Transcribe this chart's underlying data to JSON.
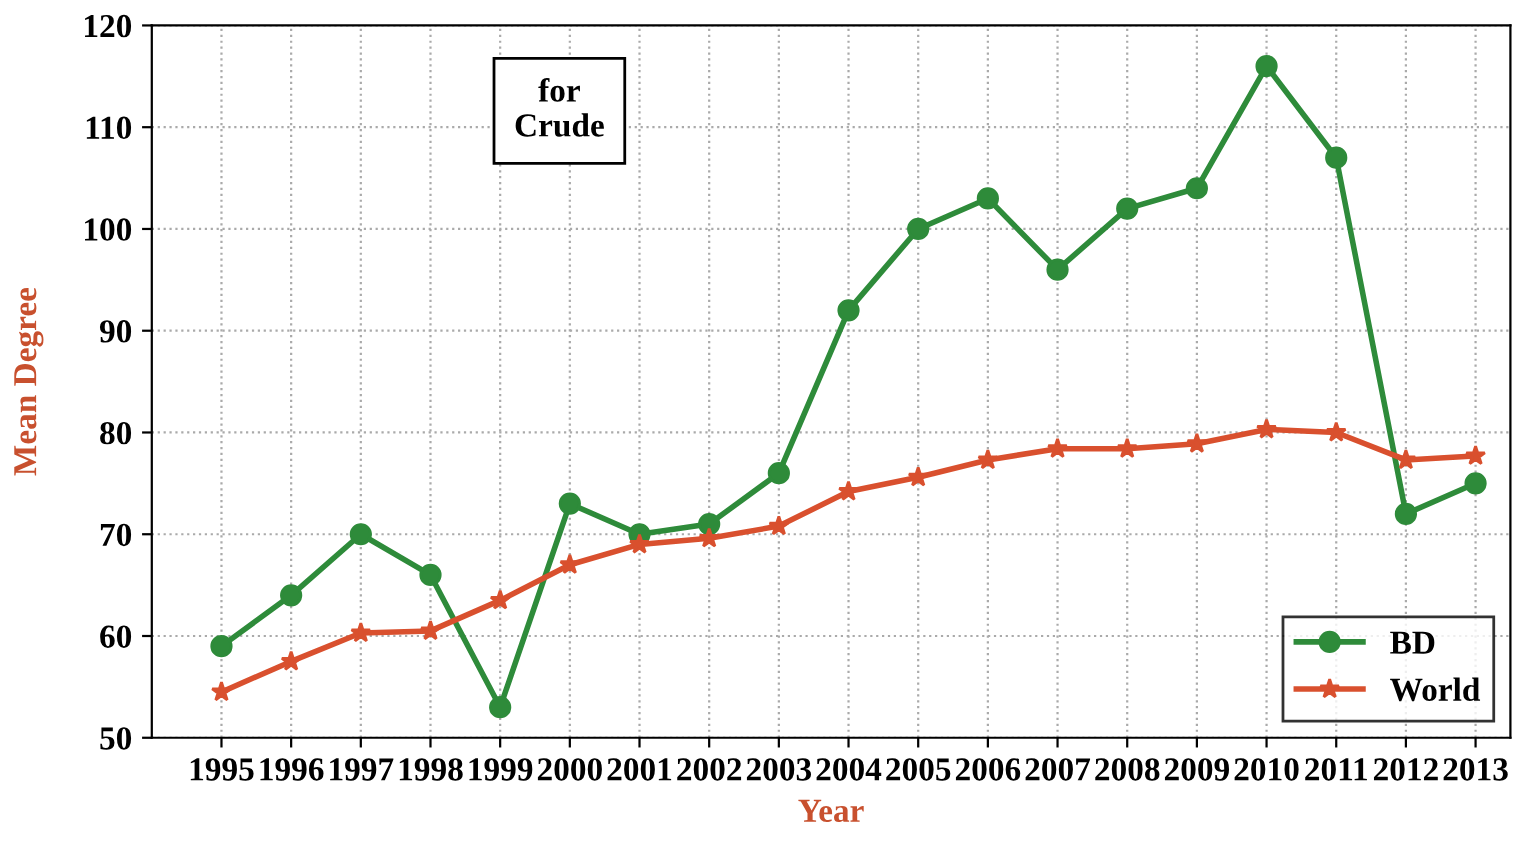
{
  "chart_data": {
    "type": "line",
    "xlabel": "Year",
    "ylabel": "Mean Degree",
    "annotations": [
      "for\nCrude"
    ],
    "x": [
      1995,
      1996,
      1997,
      1998,
      1999,
      2000,
      2001,
      2002,
      2003,
      2004,
      2005,
      2006,
      2007,
      2008,
      2009,
      2010,
      2011,
      2012,
      2013
    ],
    "series": [
      {
        "name": "BD",
        "color": "#2e8b3a",
        "marker": "circle",
        "values": [
          59,
          64,
          70,
          66,
          53,
          73,
          70,
          71,
          76,
          92,
          100,
          103,
          96,
          102,
          104,
          116,
          107,
          72,
          75
        ]
      },
      {
        "name": "World",
        "color": "#d9502e",
        "marker": "star",
        "values": [
          54.5,
          57.5,
          60.3,
          60.5,
          63.5,
          67,
          69,
          69.6,
          70.8,
          74.2,
          75.6,
          77.3,
          78.4,
          78.4,
          78.9,
          80.3,
          80,
          77.3,
          77.7
        ]
      }
    ],
    "xlim": [
      1994,
      2013.5
    ],
    "xticks": [
      1995,
      1996,
      1997,
      1998,
      1999,
      2000,
      2001,
      2002,
      2003,
      2004,
      2005,
      2006,
      2007,
      2008,
      2009,
      2010,
      2011,
      2012,
      2013
    ],
    "ylim": [
      50,
      120
    ],
    "yticks": [
      50,
      60,
      70,
      80,
      90,
      100,
      110,
      120
    ],
    "grid": true,
    "legend": "bottom right",
    "line_style": "solid"
  }
}
